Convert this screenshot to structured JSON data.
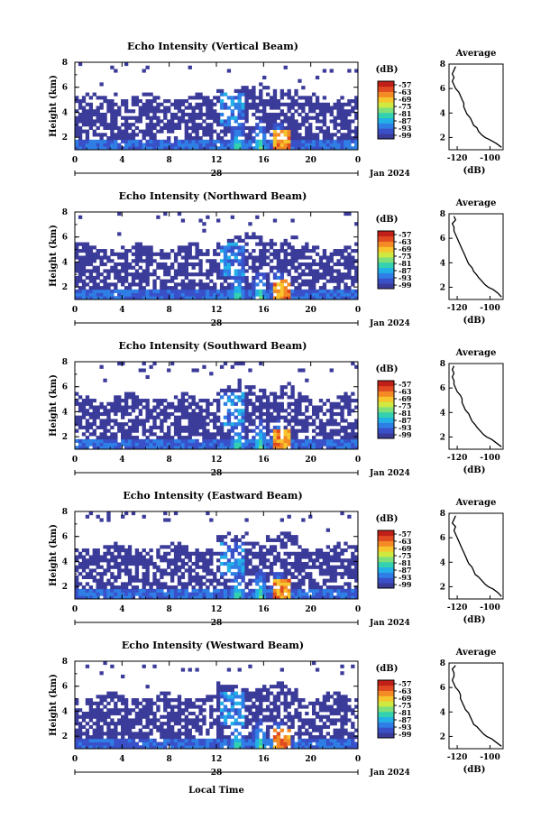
{
  "chart_data": {
    "type": "heatmap",
    "panel_titles": [
      "Echo Intensity (Vertical Beam)",
      "Echo Intensity (Northward Beam)",
      "Echo Intensity (Southward Beam)",
      "Echo Intensity (Eastward Beam)",
      "Echo Intensity (Westward Beam)"
    ],
    "ylabel": "Height (km)",
    "xlabel": "Local Time",
    "date_label": "Jan 2024",
    "day_label": "28",
    "x_ticks": [
      "0",
      "4",
      "8",
      "12",
      "16",
      "20",
      "0"
    ],
    "x_range_hours": [
      0,
      24
    ],
    "y_ticks": [
      "2",
      "4",
      "6",
      "8"
    ],
    "y_range_km": [
      1,
      8
    ],
    "colorbar": {
      "unit": "(dB)",
      "ticks": [
        "-57",
        "-63",
        "-69",
        "-75",
        "-81",
        "-87",
        "-93",
        "-99"
      ],
      "colors": [
        "#3b3b9a",
        "#3950c9",
        "#2f7ee6",
        "#22b0e6",
        "#33d1b0",
        "#7fe07a",
        "#cfe940",
        "#f7c52d",
        "#f38a25",
        "#e04a20",
        "#c02018"
      ]
    },
    "profile": {
      "title": "Average",
      "xlabel": "(dB)",
      "x_ticks": [
        "-120",
        "-100"
      ],
      "x_range_db": [
        -125,
        -92
      ],
      "y_ticks": [
        "2",
        "4",
        "6",
        "8"
      ],
      "y_range_km": [
        1,
        8
      ],
      "series": [
        {
          "height_km": [
            1.2,
            1.5,
            1.8,
            2.0,
            2.2,
            2.5,
            2.8,
            3.0,
            3.3,
            3.6,
            3.9,
            4.2,
            4.5,
            4.8,
            5.1,
            5.4,
            5.7,
            6.0,
            6.3,
            6.6,
            6.9,
            7.2,
            7.5,
            7.8
          ],
          "db": [
            -93,
            -96,
            -100,
            -103,
            -105,
            -107,
            -108,
            -110,
            -111,
            -112,
            -114,
            -115,
            -116,
            -116,
            -117,
            -118,
            -119,
            -121,
            -122,
            -123,
            -122,
            -123,
            -122,
            -121
          ]
        },
        {
          "height_km": [
            1.2,
            1.5,
            1.8,
            2.0,
            2.2,
            2.5,
            2.8,
            3.0,
            3.3,
            3.6,
            3.9,
            4.2,
            4.5,
            4.8,
            5.1,
            5.4,
            5.7,
            6.0,
            6.3,
            6.6,
            6.9,
            7.2,
            7.5,
            7.8
          ],
          "db": [
            -93,
            -95,
            -98,
            -101,
            -103,
            -105,
            -107,
            -108,
            -110,
            -111,
            -113,
            -114,
            -115,
            -116,
            -117,
            -118,
            -119,
            -120,
            -121,
            -122,
            -122,
            -123,
            -121,
            -122
          ]
        },
        {
          "height_km": [
            1.2,
            1.5,
            1.8,
            2.0,
            2.2,
            2.5,
            2.8,
            3.0,
            3.3,
            3.6,
            3.9,
            4.2,
            4.5,
            4.8,
            5.1,
            5.4,
            5.7,
            6.0,
            6.3,
            6.6,
            6.9,
            7.2,
            7.5,
            7.8
          ],
          "db": [
            -93,
            -96,
            -99,
            -102,
            -104,
            -106,
            -108,
            -109,
            -111,
            -112,
            -113,
            -115,
            -116,
            -117,
            -117,
            -118,
            -120,
            -121,
            -122,
            -122,
            -123,
            -122,
            -123,
            -122
          ]
        },
        {
          "height_km": [
            1.2,
            1.5,
            1.8,
            2.0,
            2.2,
            2.5,
            2.8,
            3.0,
            3.3,
            3.6,
            3.9,
            4.2,
            4.5,
            4.8,
            5.1,
            5.4,
            5.7,
            6.0,
            6.3,
            6.6,
            6.9,
            7.2,
            7.5,
            7.8
          ],
          "db": [
            -93,
            -95,
            -98,
            -101,
            -103,
            -105,
            -107,
            -109,
            -110,
            -111,
            -113,
            -114,
            -115,
            -116,
            -117,
            -118,
            -119,
            -120,
            -121,
            -122,
            -121,
            -123,
            -122,
            -121
          ]
        },
        {
          "height_km": [
            1.2,
            1.5,
            1.8,
            2.0,
            2.2,
            2.5,
            2.8,
            3.0,
            3.3,
            3.6,
            3.9,
            4.2,
            4.5,
            4.8,
            5.1,
            5.4,
            5.7,
            6.0,
            6.3,
            6.6,
            6.9,
            7.2,
            7.5,
            7.8
          ],
          "db": [
            -93,
            -96,
            -99,
            -102,
            -104,
            -106,
            -108,
            -110,
            -111,
            -112,
            -113,
            -115,
            -116,
            -117,
            -118,
            -118,
            -119,
            -121,
            -122,
            -123,
            -122,
            -122,
            -123,
            -121
          ]
        }
      ]
    }
  }
}
